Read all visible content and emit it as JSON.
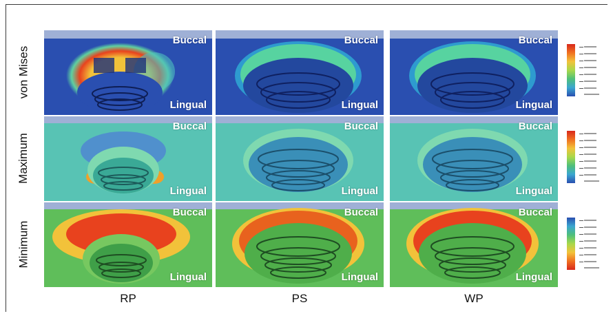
{
  "rows": [
    {
      "label": "von Mises"
    },
    {
      "label": "Maximum"
    },
    {
      "label": "Minimum"
    }
  ],
  "columns": [
    {
      "label": "RP"
    },
    {
      "label": "PS"
    },
    {
      "label": "WP"
    }
  ],
  "panel_tags": {
    "buccal": "Buccal",
    "lingual": "Lingual"
  },
  "colors": {
    "von_mises_bg": "#2a4fb0",
    "maximum_bg": "#58c3b4",
    "minimum_bg": "#5fbe5a",
    "strip": "#9fb0d6",
    "hot": "#e8421e",
    "warm": "#f2c23a"
  }
}
